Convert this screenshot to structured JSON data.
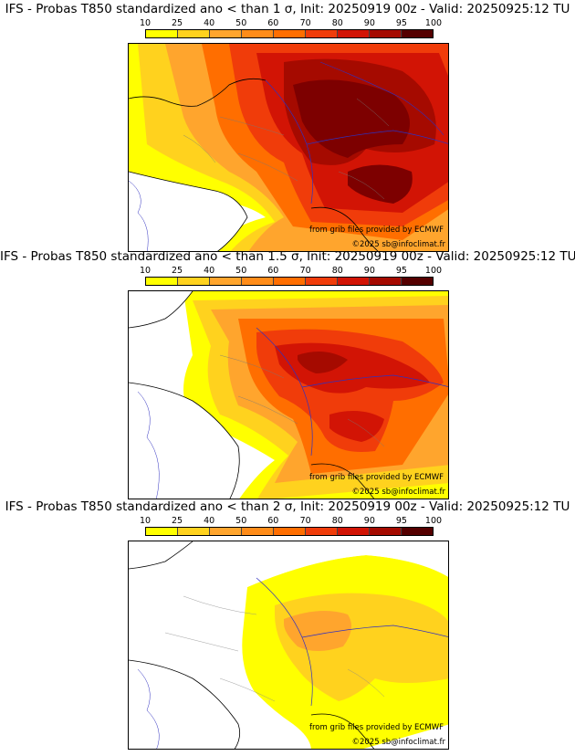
{
  "colorbar": {
    "ticks": [
      "10",
      "25",
      "40",
      "50",
      "60",
      "70",
      "80",
      "90",
      "95",
      "100"
    ],
    "colors": [
      "#ffff00",
      "#ffd21e",
      "#ffa52d",
      "#ff8c19",
      "#ff6e00",
      "#f03c0a",
      "#d21405",
      "#a50a00",
      "#7d0000",
      "#550000"
    ]
  },
  "panels": [
    {
      "title": "IFS - Probas T850  standardized ano < than 1 σ, Init: 20250919 00z - Valid: 20250925:12 TU",
      "credit_line1": "from grib files provided by ECMWF",
      "credit_line2": "©2025 sb@infoclimat.fr"
    },
    {
      "title": "IFS - Probas T850  standardized ano < than 1.5 σ, Init: 20250919 00z - Valid: 20250925:12 TU",
      "credit_line1": "from grib files provided by ECMWF",
      "credit_line2": "©2025 sb@infoclimat.fr"
    },
    {
      "title": "IFS - Probas T850  standardized ano < than 2 σ, Init: 20250919 00z - Valid: 20250925:12 TU",
      "credit_line1": "from grib files provided by ECMWF",
      "credit_line2": "©2025 sb@infoclimat.fr"
    }
  ]
}
